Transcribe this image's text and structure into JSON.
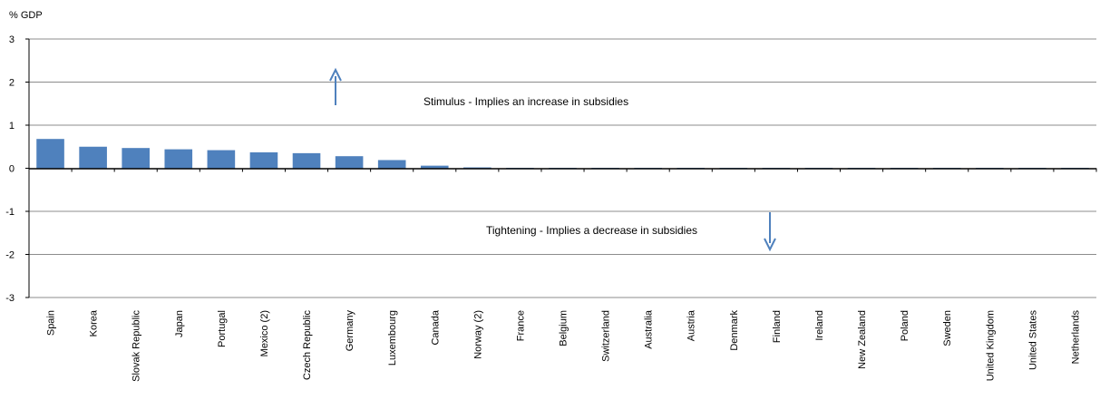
{
  "chart_data": {
    "type": "bar",
    "ylabel": "% GDP",
    "ylim": [
      -3,
      3
    ],
    "yticks": [
      3,
      2,
      1,
      0,
      -1,
      -2,
      -3
    ],
    "grid": true,
    "categories": [
      "Spain",
      "Korea",
      "Slovak Republic",
      "Japan",
      "Portugal",
      "Mexico (2)",
      "Czech Republic",
      "Germany",
      "Luxembourg",
      "Canada",
      "Norway (2)",
      "France",
      "Belgium",
      "Switzerland",
      "Australia",
      "Austria",
      "Denmark",
      "Finland",
      "Ireland",
      "New Zealand",
      "Poland",
      "Sweden",
      "United Kingdom",
      "United States",
      "Netherlands"
    ],
    "values": [
      0.68,
      0.5,
      0.47,
      0.44,
      0.42,
      0.37,
      0.35,
      0.28,
      0.19,
      0.06,
      0.02,
      0.01,
      0.01,
      0.01,
      0.01,
      0.01,
      0.01,
      0.01,
      0.01,
      0.01,
      0.01,
      0.01,
      0.01,
      0.01,
      0.01
    ],
    "bar_color": "#4F81BD",
    "annotations": {
      "stimulus": "Stimulus - Implies an increase in subsidies",
      "tightening": "Tightening - Implies a decrease in subsidies"
    },
    "arrow_color": "#4F81BD"
  }
}
